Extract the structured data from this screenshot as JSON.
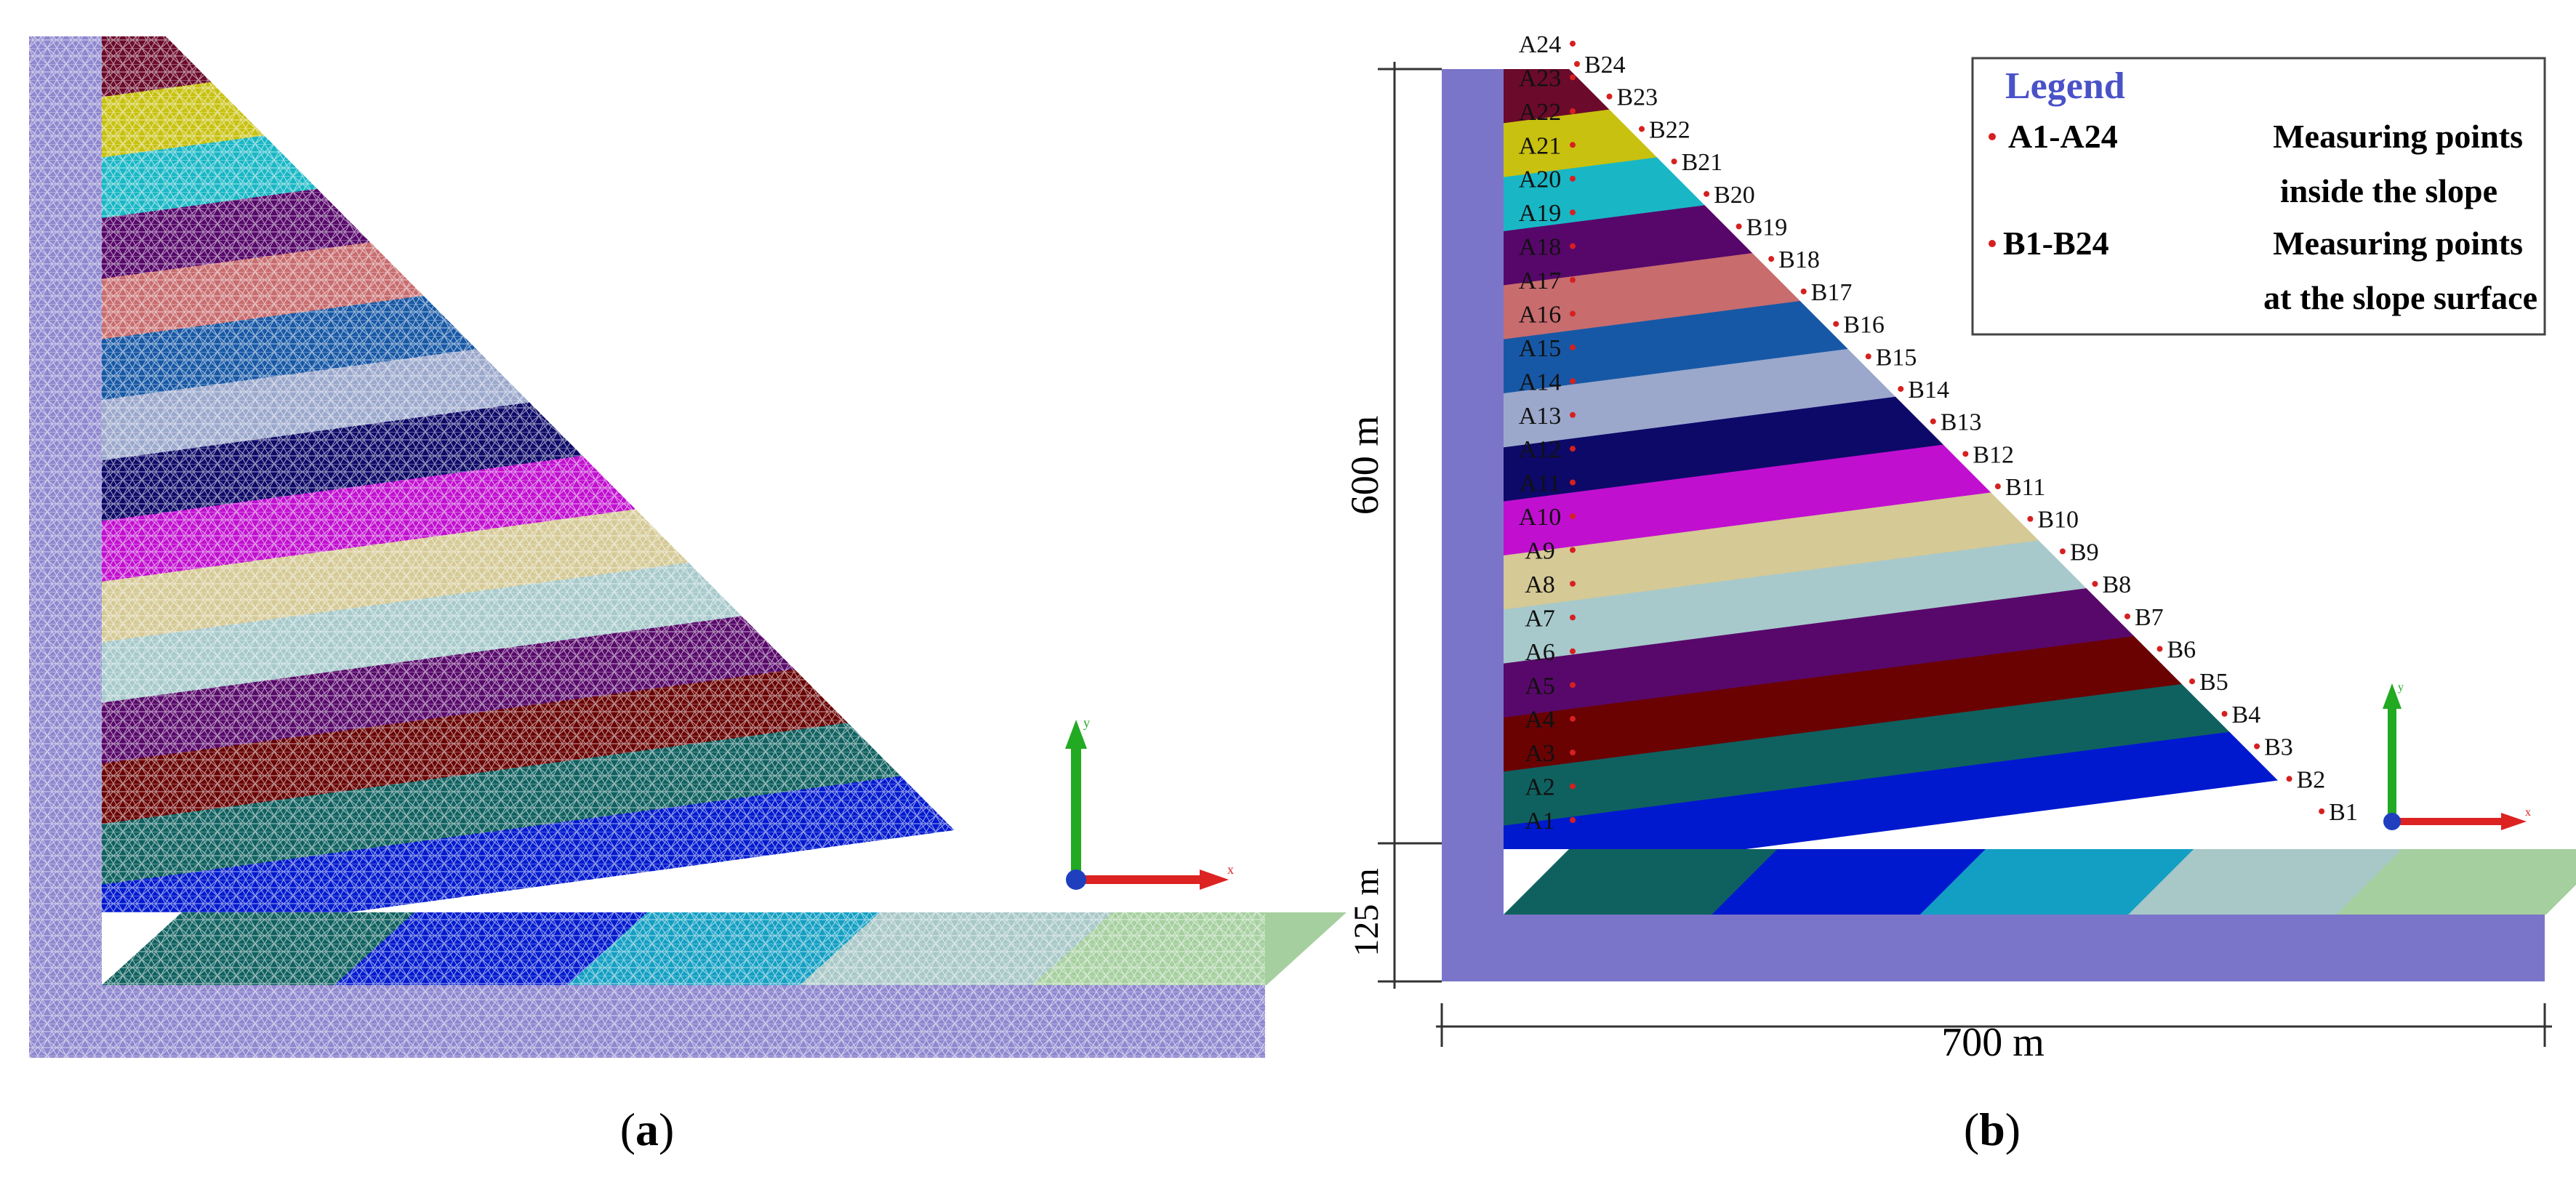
{
  "panels": {
    "a": {
      "label_open": "(",
      "label_letter": "a",
      "label_close": ")"
    },
    "b": {
      "label_open": "(",
      "label_letter": "b",
      "label_close": ")"
    }
  },
  "axes": {
    "x_label": "x",
    "y_label": "y"
  },
  "dimensions": {
    "height_label": "600 m",
    "base_label": "125 m",
    "width_label": "700 m"
  },
  "legend": {
    "title": "Legend",
    "entries": [
      {
        "key": "A1-A24",
        "line1": "Measuring points",
        "line2": "inside the slope"
      },
      {
        "key": "B1-B24",
        "line1": "Measuring points",
        "line2": "at the slope surface"
      }
    ]
  },
  "layers": {
    "colors": [
      "#0b1ed6",
      "#d6d3a8",
      "#9aa6e3",
      "#0a0d6b",
      "#d455d4",
      "#a8d2d6",
      "#a8d2d6",
      "#c9c293",
      "#0c0f6d",
      "#cfd1cf",
      "#1955a8",
      "#cf6f71",
      "#5d1766",
      "#16bfca",
      "#cbc21a",
      "#63152a",
      "#0f6261",
      "#6b0101",
      "#57096b",
      "#a6cacc",
      "#d6c893",
      "#cc00cc",
      "#0e0866",
      "#9aa6cc",
      "#1557a6",
      "#c9686a",
      "#57066b",
      "#1ab8c6",
      "#c9c10c"
    ],
    "band_colors_top_to_bottom": [
      "#6b0a2a",
      "#c8c10f",
      "#19b7c5",
      "#57076a",
      "#c86c6e",
      "#1758a6",
      "#9ba8cc",
      "#0d0968",
      "#c10fd0",
      "#d5c995",
      "#a7c9cb",
      "#58086a",
      "#6a0202",
      "#0f6160",
      "#0019cf",
      "#139fc3",
      "#a8c7c7",
      "#a5cf9e"
    ],
    "side_color": "#7b75c9",
    "mesh_side_color": "#8f87cf"
  },
  "points_A": [
    "A1",
    "A2",
    "A3",
    "A4",
    "A5",
    "A6",
    "A7",
    "A8",
    "A9",
    "A10",
    "A11",
    "A12",
    "A13",
    "A14",
    "A15",
    "A16",
    "A17",
    "A18",
    "A19",
    "A20",
    "A21",
    "A22",
    "A23",
    "A24"
  ],
  "points_B": [
    "B1",
    "B2",
    "B3",
    "B4",
    "B5",
    "B6",
    "B7",
    "B8",
    "B9",
    "B10",
    "B11",
    "B12",
    "B13",
    "B14",
    "B15",
    "B16",
    "B17",
    "B18",
    "B19",
    "B20",
    "B21",
    "B22",
    "B23",
    "B24"
  ],
  "point_color": "#d62020",
  "axis_colors": {
    "y": "#22aa22",
    "x": "#dd2222",
    "origin": "#1f3fbf"
  }
}
